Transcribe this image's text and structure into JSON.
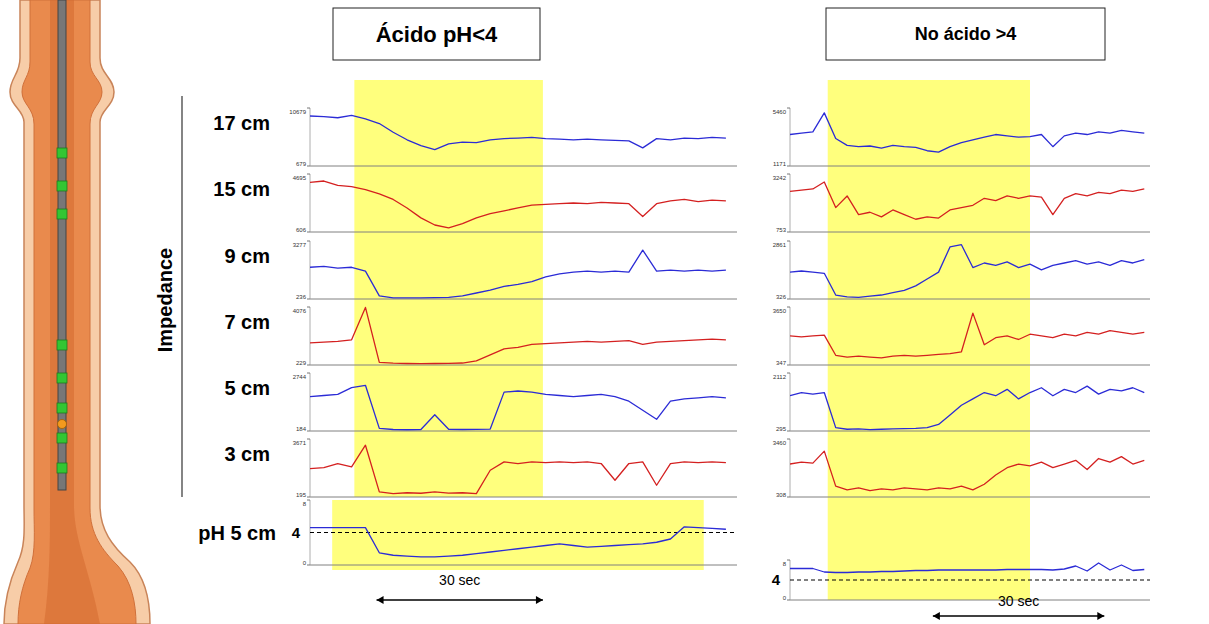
{
  "chart_data": [
    {
      "type": "line",
      "title": "Ácido pH<4",
      "y_label": "Impedance",
      "xlim": [
        0,
        77
      ],
      "highlight": [
        8,
        42
      ],
      "ph_highlight": [
        4,
        71
      ],
      "scale_bar": {
        "from": 12,
        "to": 42,
        "label": "30 sec"
      },
      "x": [
        0,
        2.5,
        5,
        7.5,
        10,
        12.5,
        15,
        17.5,
        20,
        22.5,
        25,
        27.5,
        30,
        32.5,
        35,
        37.5,
        40,
        42.5,
        45,
        47.5,
        50,
        52.5,
        55,
        57.5,
        60,
        62.5,
        65,
        67.5,
        70,
        72.5,
        75
      ],
      "series": [
        {
          "name": "17 cm",
          "color": "#2b2bd6",
          "ylim": [
            679,
            10679
          ],
          "yticks": [
            679,
            10679
          ],
          "values": [
            9300,
            9200,
            9000,
            9400,
            8800,
            8000,
            6500,
            5200,
            4200,
            3500,
            4500,
            4800,
            4700,
            5200,
            5400,
            5500,
            5600,
            5400,
            5300,
            5200,
            5300,
            5200,
            5100,
            5000,
            3800,
            5400,
            5200,
            5500,
            5400,
            5600,
            5500
          ]
        },
        {
          "name": "15 cm",
          "color": "#d42020",
          "ylim": [
            606,
            4695
          ],
          "yticks": [
            606,
            4695
          ],
          "values": [
            4100,
            4200,
            3900,
            3800,
            3600,
            3300,
            2900,
            2300,
            1600,
            1100,
            900,
            1200,
            1600,
            1900,
            2100,
            2300,
            2500,
            2550,
            2600,
            2650,
            2600,
            2700,
            2650,
            2600,
            1700,
            2600,
            2800,
            2900,
            2750,
            2850,
            2800
          ]
        },
        {
          "name": "9 cm",
          "color": "#2b2bd6",
          "ylim": [
            236,
            3277
          ],
          "yticks": [
            236,
            3277
          ],
          "values": [
            1900,
            1950,
            1850,
            1900,
            1700,
            400,
            300,
            290,
            300,
            310,
            320,
            400,
            550,
            700,
            900,
            1000,
            1150,
            1400,
            1550,
            1650,
            1700,
            1650,
            1700,
            1650,
            2800,
            1700,
            1750,
            1700,
            1750,
            1700,
            1750
          ]
        },
        {
          "name": "7 cm",
          "color": "#d42020",
          "ylim": [
            229,
            4076
          ],
          "yticks": [
            229,
            4076
          ],
          "values": [
            1700,
            1750,
            1800,
            1900,
            4050,
            400,
            350,
            330,
            320,
            330,
            340,
            360,
            500,
            900,
            1300,
            1400,
            1600,
            1650,
            1700,
            1750,
            1800,
            1750,
            1800,
            1850,
            1600,
            1750,
            1800,
            1850,
            1900,
            1950,
            1900
          ]
        },
        {
          "name": "5 cm",
          "color": "#2b2bd6",
          "ylim": [
            184,
            2744
          ],
          "yticks": [
            184,
            2744
          ],
          "values": [
            1700,
            1750,
            1800,
            2100,
            2200,
            300,
            250,
            240,
            250,
            900,
            260,
            250,
            260,
            270,
            1900,
            1950,
            1900,
            1800,
            1750,
            1700,
            1750,
            1800,
            1700,
            1500,
            1100,
            700,
            1500,
            1600,
            1650,
            1700,
            1650
          ]
        },
        {
          "name": "3 cm",
          "color": "#d42020",
          "ylim": [
            195,
            3671
          ],
          "yticks": [
            195,
            3671
          ],
          "values": [
            1900,
            1950,
            2200,
            2000,
            3300,
            500,
            400,
            450,
            420,
            500,
            430,
            450,
            400,
            1800,
            2300,
            2200,
            2300,
            2250,
            2300,
            2250,
            2300,
            2200,
            1200,
            2200,
            2300,
            900,
            2200,
            2300,
            2250,
            2300,
            2250
          ]
        }
      ],
      "ph": {
        "name": "pH 5 cm",
        "color": "#2b2bd6",
        "ylim": [
          0,
          8
        ],
        "yticks": [
          0,
          8
        ],
        "threshold": 4,
        "values": [
          4.6,
          4.6,
          4.6,
          4.6,
          4.6,
          1.5,
          1.2,
          1.1,
          1.0,
          1.0,
          1.1,
          1.2,
          1.4,
          1.6,
          1.8,
          2.0,
          2.2,
          2.4,
          2.6,
          2.4,
          2.2,
          2.3,
          2.4,
          2.5,
          2.6,
          2.8,
          3.2,
          4.7,
          4.6,
          4.5,
          4.4
        ]
      }
    },
    {
      "type": "line",
      "title": "No ácido >4",
      "xlim": [
        0,
        63
      ],
      "highlight": [
        6.6,
        42
      ],
      "scale_bar": {
        "from": 25,
        "to": 55,
        "label": "30 sec"
      },
      "x": [
        0,
        2,
        4,
        6,
        8,
        10,
        12,
        14,
        16,
        18,
        20,
        22,
        24,
        26,
        28,
        30,
        32,
        34,
        36,
        38,
        40,
        42,
        44,
        46,
        48,
        50,
        52,
        54,
        56,
        58,
        60,
        62
      ],
      "series": [
        {
          "color": "#2b2bd6",
          "ylim": [
            1171,
            5460
          ],
          "yticks": [
            1171,
            5460
          ],
          "values": [
            3500,
            3600,
            3700,
            5100,
            3200,
            2700,
            2600,
            2650,
            2500,
            2700,
            2600,
            2550,
            2300,
            2200,
            2600,
            2900,
            3100,
            3300,
            3500,
            3400,
            3300,
            3350,
            3500,
            2600,
            3400,
            3600,
            3500,
            3700,
            3600,
            3800,
            3700,
            3600
          ]
        },
        {
          "color": "#d42020",
          "ylim": [
            753,
            3242
          ],
          "yticks": [
            753,
            3242
          ],
          "values": [
            2500,
            2550,
            2600,
            2900,
            1800,
            2300,
            1500,
            1600,
            1400,
            1700,
            1500,
            1300,
            1400,
            1350,
            1700,
            1800,
            1900,
            2200,
            2100,
            2300,
            2200,
            2300,
            2250,
            1500,
            2200,
            2400,
            2300,
            2450,
            2400,
            2550,
            2500,
            2600
          ]
        },
        {
          "color": "#2b2bd6",
          "ylim": [
            326,
            2861
          ],
          "yticks": [
            326,
            2861
          ],
          "values": [
            1500,
            1550,
            1500,
            1450,
            500,
            420,
            400,
            450,
            500,
            600,
            700,
            900,
            1200,
            1500,
            2600,
            2700,
            1700,
            1900,
            1800,
            1950,
            1700,
            1850,
            1600,
            1800,
            1900,
            2000,
            1850,
            1950,
            1800,
            2000,
            1900,
            2050
          ]
        },
        {
          "color": "#d42020",
          "ylim": [
            347,
            3650
          ],
          "yticks": [
            347,
            3650
          ],
          "values": [
            2000,
            1950,
            2000,
            2050,
            900,
            800,
            850,
            800,
            750,
            850,
            900,
            850,
            900,
            950,
            1000,
            1100,
            3300,
            1500,
            1900,
            2000,
            1800,
            2100,
            2000,
            1900,
            2100,
            2000,
            2200,
            2100,
            2300,
            2200,
            2100,
            2200
          ]
        },
        {
          "color": "#2b2bd6",
          "ylim": [
            295,
            2112
          ],
          "yticks": [
            295,
            2112
          ],
          "values": [
            1400,
            1500,
            1450,
            1500,
            400,
            350,
            360,
            340,
            350,
            360,
            370,
            380,
            400,
            500,
            800,
            1100,
            1300,
            1500,
            1400,
            1600,
            1300,
            1500,
            1650,
            1400,
            1600,
            1500,
            1700,
            1450,
            1600,
            1550,
            1650,
            1500
          ]
        },
        {
          "color": "#d42020",
          "ylim": [
            308,
            3460
          ],
          "yticks": [
            308,
            3460
          ],
          "values": [
            2100,
            2200,
            2150,
            2800,
            900,
            700,
            800,
            650,
            750,
            700,
            800,
            750,
            700,
            800,
            750,
            900,
            700,
            1000,
            1500,
            1900,
            2100,
            2000,
            2200,
            1900,
            2100,
            2300,
            1800,
            2400,
            2200,
            2500,
            2100,
            2300
          ]
        }
      ],
      "ph": {
        "color": "#2b2bd6",
        "ylim": [
          0,
          8
        ],
        "yticks": [
          0,
          8
        ],
        "threshold": 4,
        "values": [
          6.3,
          6.3,
          6.3,
          5.6,
          5.5,
          5.5,
          5.6,
          5.6,
          5.7,
          5.7,
          5.8,
          5.9,
          5.9,
          6.0,
          6.0,
          6.0,
          6.0,
          6.0,
          6.0,
          6.1,
          6.1,
          6.1,
          6.1,
          6.0,
          6.2,
          6.8,
          5.8,
          7.4,
          6.0,
          7.0,
          5.9,
          6.1
        ]
      }
    }
  ]
}
